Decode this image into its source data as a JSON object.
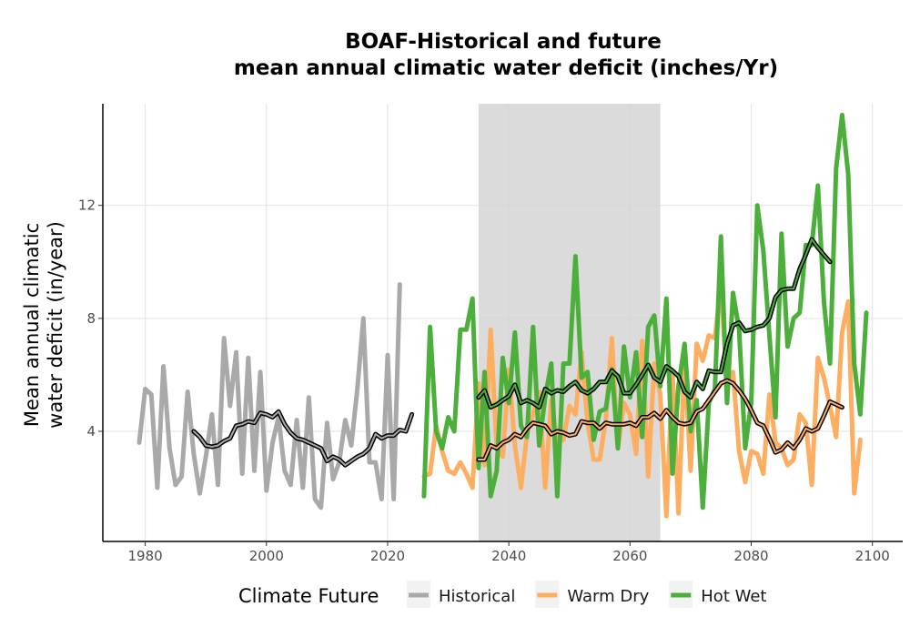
{
  "chart_data": {
    "type": "line",
    "title": "BOAF-Historical and future",
    "subtitle": "mean annual climatic water deficit (inches/Yr)",
    "ylabel": [
      "Mean annual climatic",
      "water deficit (in/year)"
    ],
    "xlabel": "",
    "xlim": [
      1973,
      2105
    ],
    "ylim": [
      0.1,
      15.6
    ],
    "xticks": [
      1980,
      2000,
      2020,
      2040,
      2060,
      2080,
      2100
    ],
    "yticks": [
      4,
      8,
      12
    ],
    "grid": true,
    "legend": {
      "title": "Climate Future",
      "position": "bottom"
    },
    "shaded_period": [
      2035,
      2065
    ],
    "series": [
      {
        "name": "Historical",
        "color": "#a9a9a9",
        "x_start": 1979,
        "values": [
          3.6,
          5.5,
          5.3,
          2.0,
          6.3,
          3.4,
          2.1,
          2.4,
          5.4,
          3.2,
          1.8,
          3.1,
          4.6,
          2.1,
          7.3,
          4.9,
          6.8,
          2.5,
          6.6,
          2.6,
          6.1,
          1.9,
          3.6,
          4.5,
          2.6,
          2.1,
          4.4,
          2.0,
          5.2,
          1.6,
          1.3,
          4.3,
          2.3,
          2.9,
          4.4,
          3.5,
          5.5,
          8.0,
          2.9,
          2.9,
          1.6,
          6.7,
          1.6,
          9.2
        ]
      },
      {
        "name": "Warm Dry",
        "color": "#fdae61",
        "x_start": 2026,
        "values": [
          2.4,
          2.5,
          4.2,
          3.3,
          2.6,
          2.5,
          2.9,
          2.5,
          2.0,
          5.7,
          2.8,
          7.6,
          3.4,
          3.1,
          6.2,
          3.5,
          2.0,
          3.9,
          4.6,
          5.4,
          2.0,
          5.1,
          3.6,
          3.7,
          4.9,
          4.6,
          6.8,
          4.3,
          3.0,
          3.0,
          4.4,
          7.3,
          3.4,
          5.0,
          4.6,
          3.2,
          7.2,
          2.4,
          6.4,
          5.3,
          1.0,
          6.1,
          1.1,
          6.6,
          2.6,
          7.1,
          6.5,
          7.4,
          7.3,
          9.2,
          5.6,
          6.1,
          3.3,
          2.2,
          3.3,
          3.2,
          2.5,
          5.3,
          3.6,
          3.4,
          2.8,
          3.0,
          4.6,
          4.3,
          2.1,
          6.6,
          5.9,
          4.9,
          3.8,
          7.5,
          8.6,
          1.8,
          3.7
        ]
      },
      {
        "name": "Hot Wet",
        "color": "#4caf3c",
        "x_start": 2026,
        "values": [
          1.7,
          7.7,
          4.0,
          3.4,
          4.5,
          4.0,
          7.6,
          7.6,
          8.7,
          2.7,
          6.1,
          1.7,
          2.6,
          6.6,
          5.0,
          7.5,
          4.2,
          3.8,
          7.7,
          3.5,
          5.2,
          6.4,
          1.7,
          6.4,
          6.4,
          10.2,
          5.9,
          6.1,
          3.7,
          4.7,
          4.8,
          6.2,
          3.4,
          7.0,
          5.2,
          6.8,
          3.8,
          7.7,
          8.1,
          5.6,
          8.7,
          2.5,
          5.6,
          7.1,
          4.0,
          5.1,
          1.3,
          5.0,
          5.5,
          10.9,
          5.0,
          8.9,
          7.6,
          3.4,
          5.0,
          12.0,
          10.4,
          7.4,
          4.5,
          11.0,
          7.0,
          8.0,
          8.2,
          10.6,
          10.6,
          12.7,
          8.6,
          6.4,
          13.3,
          15.2,
          13.1,
          6.4,
          4.6,
          8.2
        ]
      }
    ],
    "smoothed": [
      {
        "name": "Historical",
        "x_start": 1988,
        "values": [
          4.0,
          3.8,
          3.5,
          3.45,
          3.5,
          3.65,
          3.75,
          4.2,
          4.25,
          4.35,
          4.3,
          4.65,
          4.6,
          4.5,
          4.7,
          4.25,
          3.95,
          3.75,
          3.7,
          3.6,
          3.5,
          3.4,
          2.95,
          3.1,
          3.0,
          2.8,
          2.95,
          3.1,
          3.2,
          3.4,
          3.9,
          3.75,
          3.85,
          3.85,
          4.05,
          4.0,
          4.6
        ]
      },
      {
        "name": "Warm Dry",
        "x_start": 2035,
        "values": [
          3.0,
          3.0,
          3.5,
          3.4,
          3.6,
          3.7,
          3.9,
          3.8,
          4.1,
          4.3,
          4.25,
          4.2,
          3.9,
          4.0,
          3.95,
          3.85,
          3.9,
          4.35,
          4.3,
          4.3,
          4.1,
          4.3,
          4.25,
          4.25,
          4.25,
          4.3,
          4.2,
          4.5,
          4.5,
          4.65,
          4.45,
          4.75,
          4.5,
          4.3,
          4.25,
          4.3,
          4.7,
          4.8,
          5.1,
          5.4,
          5.7,
          5.8,
          5.7,
          5.45,
          5.15,
          4.75,
          4.3,
          4.2,
          3.75,
          3.25,
          3.35,
          3.6,
          3.4,
          3.7,
          4.1,
          4.0,
          4.1,
          4.55,
          5.05,
          4.95,
          4.85
        ]
      },
      {
        "name": "Hot Wet",
        "x_start": 2035,
        "values": [
          5.2,
          5.45,
          4.85,
          4.95,
          5.1,
          5.25,
          5.65,
          5.0,
          5.1,
          5.0,
          4.85,
          5.5,
          5.35,
          5.45,
          5.4,
          5.6,
          5.75,
          5.45,
          5.35,
          5.5,
          5.75,
          5.75,
          6.15,
          5.95,
          5.35,
          5.35,
          5.65,
          6.0,
          6.35,
          5.9,
          5.75,
          6.3,
          6.15,
          5.95,
          5.4,
          5.2,
          5.75,
          5.5,
          6.15,
          6.1,
          6.1,
          7.1,
          7.75,
          7.85,
          7.55,
          7.6,
          7.7,
          7.75,
          8.0,
          8.75,
          9.0,
          9.05,
          9.05,
          9.75,
          10.25,
          10.8,
          10.5,
          10.25,
          10.0
        ]
      }
    ]
  }
}
